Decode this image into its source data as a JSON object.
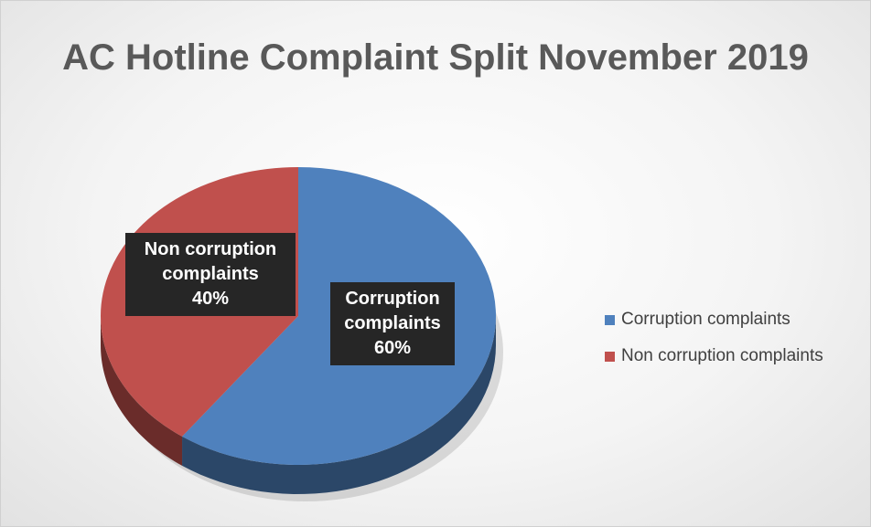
{
  "chart_data": {
    "type": "pie",
    "title": "AC Hotline Complaint Split November 2019",
    "categories": [
      "Corruption complaints",
      "Non corruption complaints"
    ],
    "values": [
      60,
      40
    ],
    "value_labels": [
      "60%",
      "40%"
    ],
    "colors": [
      "#4f81bd",
      "#c0504d"
    ],
    "legend": "right"
  }
}
